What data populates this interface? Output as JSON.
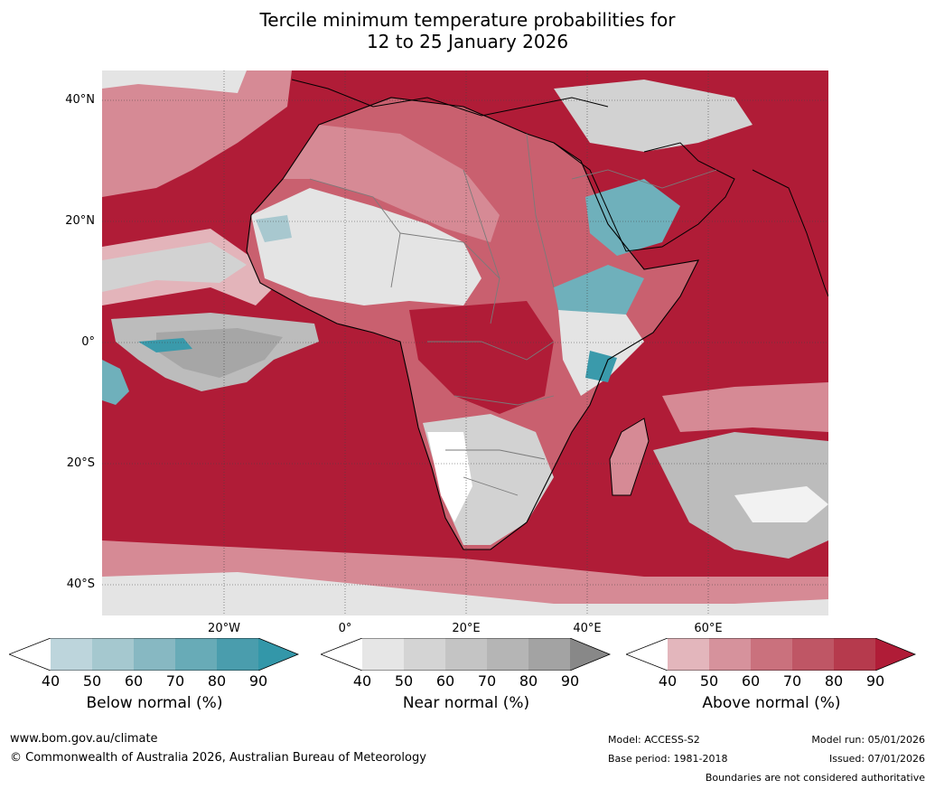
{
  "title_line1": "Tercile minimum temperature probabilities for",
  "title_line2": "12 to 25 January 2026",
  "map": {
    "lat_labels": [
      "40°N",
      "20°N",
      "0°",
      "20°S",
      "40°S"
    ],
    "lon_labels": [
      "20°W",
      "0°",
      "20°E",
      "40°E",
      "60°E"
    ],
    "colors": {
      "ocean_above": "#b01c37",
      "above_80": "#bd3a50",
      "above_70": "#c9606f",
      "above_60": "#d68a95",
      "above_50": "#e3b4ba",
      "near_40": "#e4e4e4",
      "near_50": "#d2d2d2",
      "near_60": "#bcbcbc",
      "near_70": "#a6a6a6",
      "below_50": "#a8c8cf",
      "below_70": "#6fb0bb",
      "below_90": "#3a9aab"
    }
  },
  "legends": [
    {
      "label": "Below normal (%)",
      "ticks": [
        "40",
        "50",
        "60",
        "70",
        "80",
        "90"
      ],
      "colors": [
        "#ffffff",
        "#bdd5dc",
        "#a5c8cf",
        "#87b8c2",
        "#68abb7",
        "#4a9dad",
        "#3397a9"
      ]
    },
    {
      "label": "Near normal (%)",
      "ticks": [
        "40",
        "50",
        "60",
        "70",
        "80",
        "90"
      ],
      "colors": [
        "#ffffff",
        "#e6e6e6",
        "#d4d4d4",
        "#c4c4c4",
        "#b5b5b5",
        "#a3a3a3",
        "#888888"
      ]
    },
    {
      "label": "Above normal (%)",
      "ticks": [
        "40",
        "50",
        "60",
        "70",
        "80",
        "90"
      ],
      "colors": [
        "#ffffff",
        "#e3b6bc",
        "#d6929c",
        "#ca717d",
        "#bf5665",
        "#b63a4d",
        "#b01c37"
      ]
    }
  ],
  "footer": {
    "website": "www.bom.gov.au/climate",
    "copyright": "© Commonwealth of Australia 2026, Australian Bureau of Meteorology",
    "model": "Model: ACCESS-S2",
    "base_period": "Base period: 1981-2018",
    "model_run": "Model run: 05/01/2026",
    "issued": "Issued: 07/01/2026",
    "boundaries": "Boundaries are not considered authoritative"
  }
}
